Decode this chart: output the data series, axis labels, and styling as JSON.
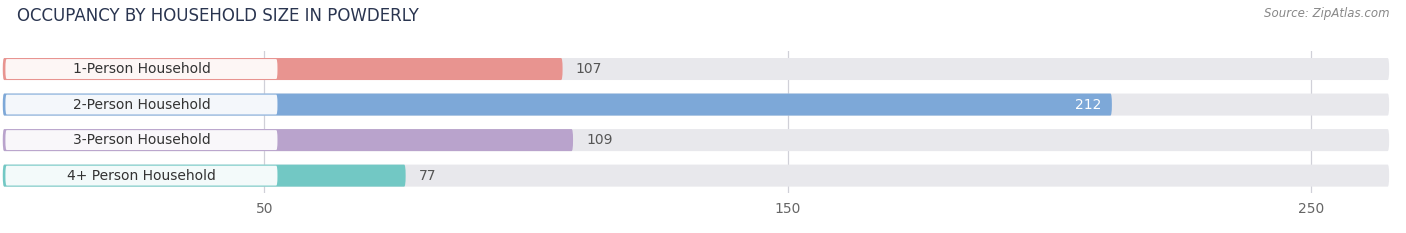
{
  "title": "OCCUPANCY BY HOUSEHOLD SIZE IN POWDERLY",
  "source": "Source: ZipAtlas.com",
  "categories": [
    "1-Person Household",
    "2-Person Household",
    "3-Person Household",
    "4+ Person Household"
  ],
  "values": [
    107,
    212,
    109,
    77
  ],
  "bar_colors": [
    "#e89490",
    "#7da8d8",
    "#b9a3cc",
    "#72c8c4"
  ],
  "track_color": "#e8e8ec",
  "bg_color": "#ffffff",
  "xlim_max": 265,
  "xticks": [
    50,
    150,
    250
  ],
  "bar_height": 0.62,
  "title_fontsize": 12,
  "source_fontsize": 8.5,
  "tick_fontsize": 10,
  "value_fontsize": 10,
  "cat_fontsize": 10,
  "value_inside_color": "#ffffff",
  "value_outside_color": "#555555",
  "grid_color": "#d0d0d8"
}
